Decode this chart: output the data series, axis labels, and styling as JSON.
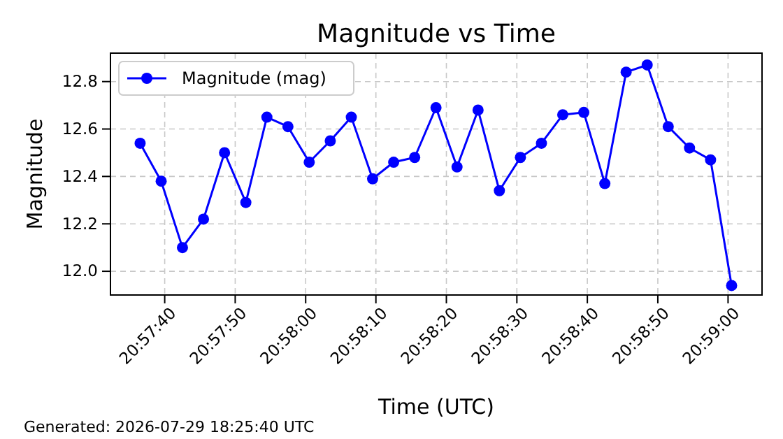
{
  "chart_data": {
    "type": "line",
    "title": "Magnitude vs Time",
    "xlabel": "Time (UTC)",
    "ylabel": "Magnitude",
    "annotations": [
      "Generated: 2026-07-29 18:25:40 UTC"
    ],
    "x": [
      20.96014,
      20.96097,
      20.96181,
      20.96264,
      20.96347,
      20.96431,
      20.96514,
      20.96597,
      20.96681,
      20.96764,
      20.96847,
      20.96931,
      20.97014,
      20.97097,
      20.97181,
      20.97264,
      20.97347,
      20.97431,
      20.97514,
      20.97597,
      20.97681,
      20.97764,
      20.97847,
      20.97931,
      20.98014,
      20.98097,
      20.98181,
      20.98264,
      20.98347
    ],
    "series": [
      {
        "name": "Magnitude (mag)",
        "color": "#0000ff",
        "values": [
          12.54,
          12.38,
          12.1,
          12.22,
          12.5,
          12.29,
          12.65,
          12.61,
          12.46,
          12.55,
          12.65,
          12.39,
          12.46,
          12.48,
          12.69,
          12.44,
          12.68,
          12.34,
          12.48,
          12.54,
          12.66,
          12.67,
          12.37,
          12.84,
          12.87,
          12.61,
          12.52,
          12.47,
          11.94
        ]
      }
    ],
    "xlim": [
      20.95897,
      20.98467
    ],
    "xticks": [
      {
        "value": 20.96111,
        "label": "20:57:40"
      },
      {
        "value": 20.96389,
        "label": "20:57:50"
      },
      {
        "value": 20.96667,
        "label": "20:58:00"
      },
      {
        "value": 20.96944,
        "label": "20:58:10"
      },
      {
        "value": 20.97222,
        "label": "20:58:20"
      },
      {
        "value": 20.975,
        "label": "20:58:30"
      },
      {
        "value": 20.97778,
        "label": "20:58:40"
      },
      {
        "value": 20.98056,
        "label": "20:58:50"
      },
      {
        "value": 20.98333,
        "label": "20:59:00"
      }
    ],
    "ylim": [
      11.9,
      12.92
    ],
    "yticks": [
      {
        "value": 12.0,
        "label": "12.0"
      },
      {
        "value": 12.2,
        "label": "12.2"
      },
      {
        "value": 12.4,
        "label": "12.4"
      },
      {
        "value": 12.6,
        "label": "12.6"
      },
      {
        "value": 12.8,
        "label": "12.8"
      }
    ],
    "grid": true,
    "legend": "top left",
    "marker": "circle",
    "line_style": "solid"
  }
}
